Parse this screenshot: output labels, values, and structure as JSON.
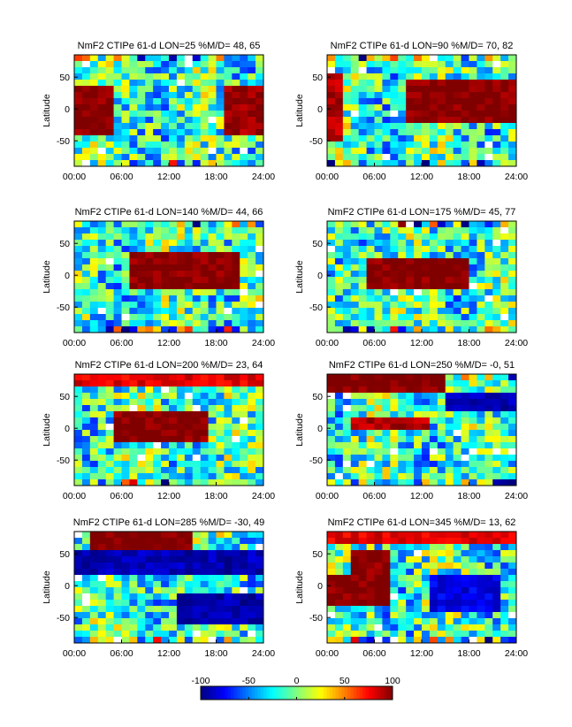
{
  "chart_data": [
    {
      "type": "heatmap",
      "title": "NmF2 CTIPe 61-d LON=25 %M/D=  48,  65",
      "ylabel": "Latitude",
      "xticks": [
        "00:00",
        "06:00",
        "12:00",
        "18:00",
        "24:00"
      ],
      "yticks": [
        "50",
        "0",
        "-50"
      ],
      "xlim": [
        0,
        24
      ],
      "ylim": [
        -90,
        85
      ],
      "regions": [
        {
          "x0": 0,
          "x1": 4.8,
          "y0": -45,
          "y1": 35,
          "v": 100
        },
        {
          "x0": 19.2,
          "x1": 24,
          "y0": -40,
          "y1": 35,
          "v": 95
        }
      ]
    },
    {
      "type": "heatmap",
      "title": "NmF2 CTIPe 61-d LON=90 %M/D=  70,  82",
      "ylabel": "Latitude",
      "xticks": [
        "00:00",
        "06:00",
        "12:00",
        "18:00",
        "24:00"
      ],
      "yticks": [
        "50",
        "0",
        "-50"
      ],
      "xlim": [
        0,
        24
      ],
      "ylim": [
        -90,
        85
      ],
      "regions": [
        {
          "x0": 10.5,
          "x1": 24,
          "y0": -20,
          "y1": 45,
          "v": 100
        },
        {
          "x0": 0,
          "x1": 1.5,
          "y0": -50,
          "y1": 55,
          "v": 90
        }
      ]
    },
    {
      "type": "heatmap",
      "title": "NmF2 CTIPe 61-d LON=140 %M/D=  44,  66",
      "ylabel": "Latitude",
      "xticks": [
        "00:00",
        "06:00",
        "12:00",
        "18:00",
        "24:00"
      ],
      "yticks": [
        "50",
        "0",
        "-50"
      ],
      "xlim": [
        0,
        24
      ],
      "ylim": [
        -90,
        85
      ],
      "regions": [
        {
          "x0": 7.5,
          "x1": 20.5,
          "y0": -25,
          "y1": 40,
          "v": 100
        }
      ]
    },
    {
      "type": "heatmap",
      "title": "NmF2 CTIPe 61-d LON=175 %M/D=  45,  77",
      "ylabel": "Latitude",
      "xticks": [
        "00:00",
        "06:00",
        "12:00",
        "18:00",
        "24:00"
      ],
      "yticks": [
        "50",
        "0",
        "-50"
      ],
      "xlim": [
        0,
        24
      ],
      "ylim": [
        -90,
        85
      ],
      "regions": [
        {
          "x0": 5.5,
          "x1": 17.5,
          "y0": -25,
          "y1": 30,
          "v": 100
        }
      ]
    },
    {
      "type": "heatmap",
      "title": "NmF2 CTIPe 61-d LON=200 %M/D=  23,  64",
      "ylabel": "Latitude",
      "xticks": [
        "00:00",
        "06:00",
        "12:00",
        "18:00",
        "24:00"
      ],
      "yticks": [
        "50",
        "0",
        "-50"
      ],
      "xlim": [
        0,
        24
      ],
      "ylim": [
        -90,
        85
      ],
      "regions": [
        {
          "x0": 5,
          "x1": 17,
          "y0": -20,
          "y1": 30,
          "v": 100
        },
        {
          "x0": 0,
          "x1": 24,
          "y0": 70,
          "y1": 85,
          "v": 80
        }
      ]
    },
    {
      "type": "heatmap",
      "title": "NmF2 CTIPe 61-d LON=250 %M/D=  -0,  51",
      "ylabel": "Latitude",
      "xticks": [
        "00:00",
        "06:00",
        "12:00",
        "18:00",
        "24:00"
      ],
      "yticks": [
        "50",
        "0",
        "-50"
      ],
      "xlim": [
        0,
        24
      ],
      "ylim": [
        -90,
        85
      ],
      "regions": [
        {
          "x0": 0,
          "x1": 15,
          "y0": 60,
          "y1": 85,
          "v": 100
        },
        {
          "x0": 3,
          "x1": 13,
          "y0": 0,
          "y1": 20,
          "v": 90
        },
        {
          "x0": 15,
          "x1": 24,
          "y0": 30,
          "y1": 60,
          "v": -90
        }
      ]
    },
    {
      "type": "heatmap",
      "title": "NmF2 CTIPe 61-d LON=285 %M/D= -30,  49",
      "ylabel": "Latitude",
      "xticks": [
        "00:00",
        "06:00",
        "12:00",
        "18:00",
        "24:00"
      ],
      "yticks": [
        "50",
        "0",
        "-50"
      ],
      "xlim": [
        0,
        24
      ],
      "ylim": [
        -90,
        85
      ],
      "regions": [
        {
          "x0": 2,
          "x1": 15,
          "y0": 60,
          "y1": 85,
          "v": 100
        },
        {
          "x0": 0,
          "x1": 24,
          "y0": 20,
          "y1": 60,
          "v": -90
        },
        {
          "x0": 13,
          "x1": 24,
          "y0": -60,
          "y1": -15,
          "v": -90
        }
      ]
    },
    {
      "type": "heatmap",
      "title": "NmF2 CTIPe 61-d LON=345 %M/D=  13,  62",
      "ylabel": "Latitude",
      "xticks": [
        "00:00",
        "06:00",
        "12:00",
        "18:00",
        "24:00"
      ],
      "yticks": [
        "50",
        "0",
        "-50"
      ],
      "xlim": [
        0,
        24
      ],
      "ylim": [
        -90,
        85
      ],
      "regions": [
        {
          "x0": 0,
          "x1": 8,
          "y0": -30,
          "y1": 15,
          "v": 100
        },
        {
          "x0": 3,
          "x1": 8,
          "y0": 15,
          "y1": 55,
          "v": 100
        },
        {
          "x0": 0,
          "x1": 24,
          "y0": 70,
          "y1": 85,
          "v": 80
        },
        {
          "x0": 13,
          "x1": 22,
          "y0": -40,
          "y1": 20,
          "v": -80
        }
      ]
    }
  ],
  "colorbar": {
    "ticks": [
      "-100",
      "-50",
      "0",
      "50",
      "100"
    ],
    "range": [
      -100,
      100
    ]
  }
}
